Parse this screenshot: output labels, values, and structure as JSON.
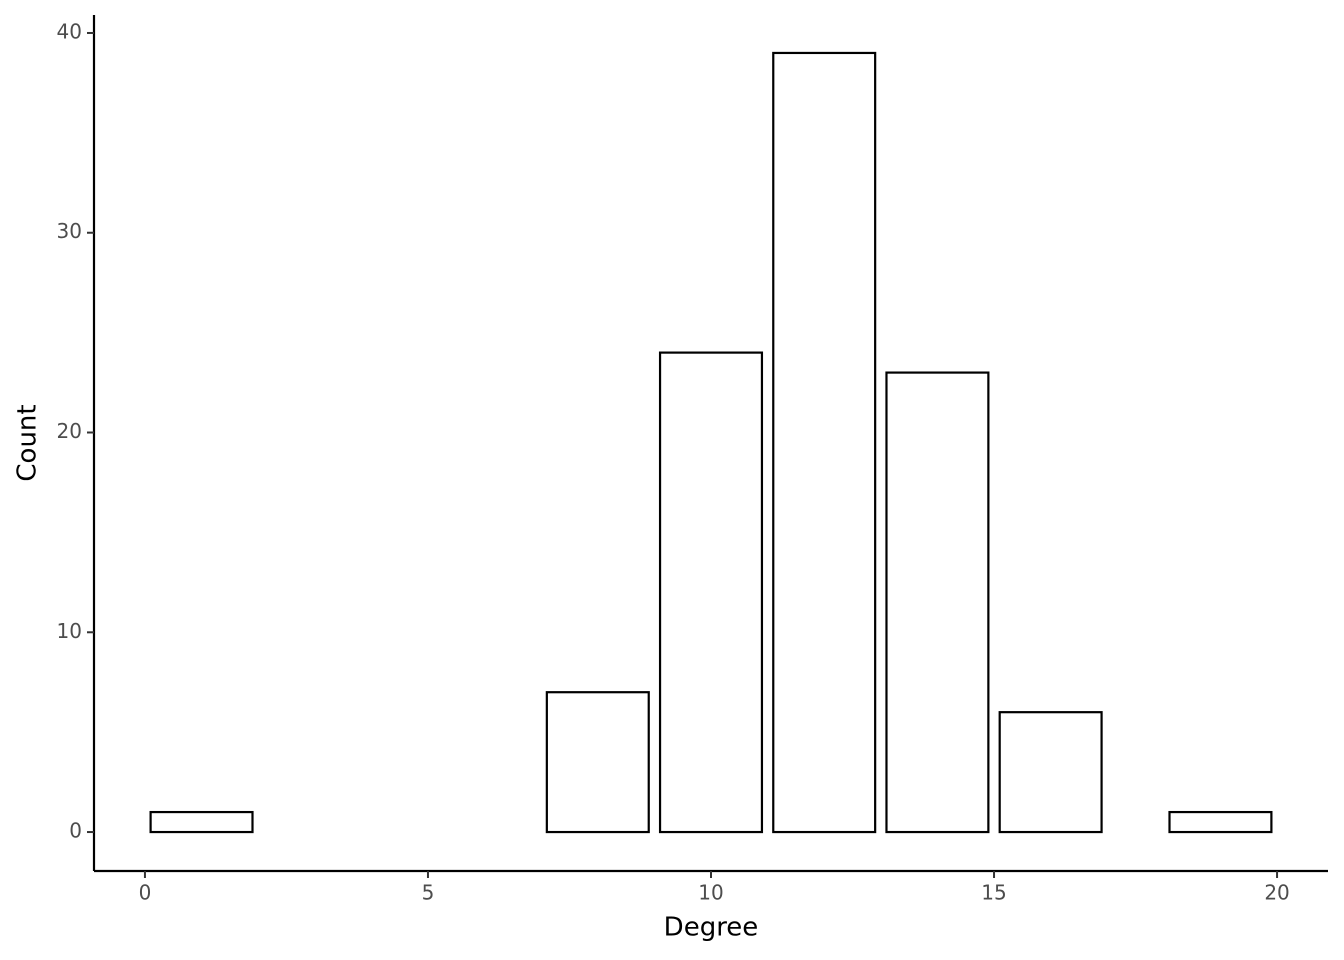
{
  "chart_data": {
    "type": "bar",
    "x_label": "Degree",
    "y_label": "Count",
    "x": [
      1,
      8,
      10,
      12,
      14,
      16,
      19
    ],
    "values": [
      1,
      7,
      24,
      39,
      23,
      6,
      1
    ],
    "color": "#ffffff",
    "edge_color": "#000000",
    "xlim": [
      -0.9,
      20.9
    ],
    "xticks": [
      0,
      5,
      10,
      15,
      20
    ],
    "ylim": [
      -1.95,
      40.9
    ],
    "yticks": [
      0,
      10,
      20,
      30,
      40
    ],
    "grid": false
  }
}
